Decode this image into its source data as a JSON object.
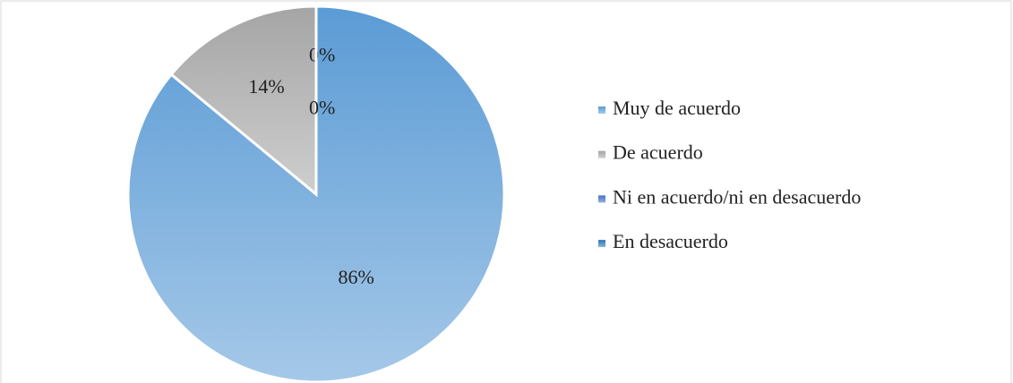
{
  "chart_data": {
    "type": "pie",
    "categories": [
      "Muy de acuerdo",
      "De acuerdo",
      "Ni en acuerdo/ni en desacuerdo",
      "En desacuerdo"
    ],
    "values": [
      86,
      14,
      0,
      0
    ],
    "value_labels": [
      "86%",
      "14%",
      "0%",
      "0%"
    ],
    "colors": [
      "#5b9bd5",
      "#a5a5a5",
      "#4472c4",
      "#2e75b6"
    ],
    "legend": "right"
  }
}
